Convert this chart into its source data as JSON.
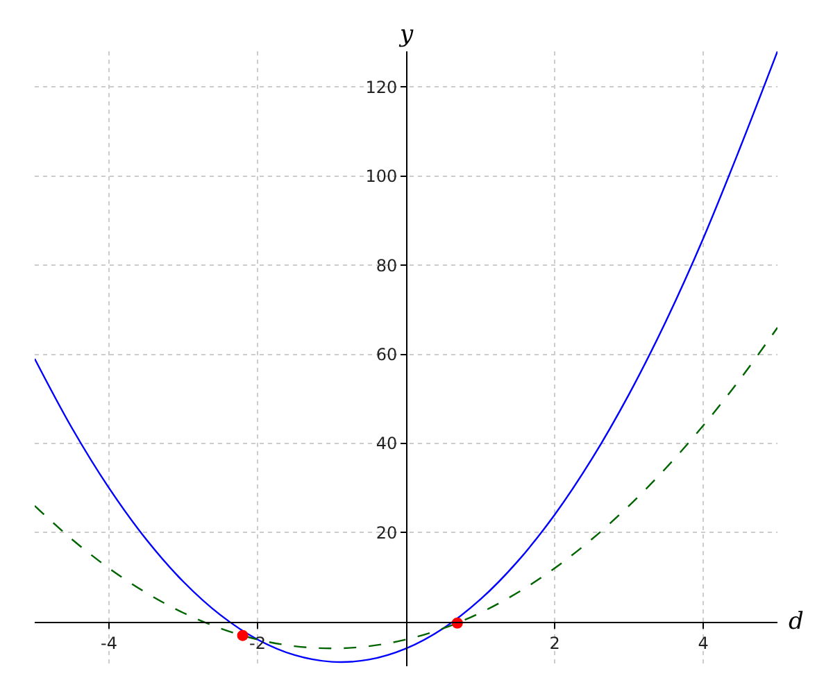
{
  "chart_data": {
    "type": "line",
    "xlabel": "d",
    "ylabel": "y",
    "xlim": [
      -5,
      5
    ],
    "ylim": [
      -10,
      128
    ],
    "xticks": [
      -4,
      -2,
      2,
      4
    ],
    "yticks": [
      20,
      40,
      60,
      80,
      100,
      120
    ],
    "grid": true,
    "series": [
      {
        "color": "#0000ff",
        "line_style": "solid",
        "x": [
          -5,
          -4.5,
          -4,
          -3.5,
          -3,
          -2.5,
          -2,
          -1.5,
          -1,
          -0.5,
          0,
          0.5,
          1,
          1.5,
          2,
          2.5,
          3,
          3.5,
          4,
          4.5,
          5
        ],
        "values": [
          59,
          43.5,
          30,
          18.5,
          9,
          1.5,
          -4,
          -7.5,
          -9,
          -8.5,
          -6,
          -1.5,
          5,
          13.5,
          24,
          36.5,
          51,
          67.5,
          86,
          106.5,
          128
        ]
      },
      {
        "color": "#006400",
        "line_style": "dashed",
        "x": [
          -5,
          -4.5,
          -4,
          -3.5,
          -3,
          -2.5,
          -2,
          -1.5,
          -1,
          -0.5,
          0,
          0.5,
          1,
          1.5,
          2,
          2.5,
          3,
          3.5,
          4,
          4.5,
          5
        ],
        "values": [
          26,
          18.5,
          12,
          6.5,
          2,
          -1.5,
          -4,
          -5.5,
          -6,
          -5.5,
          -4,
          -1.5,
          2,
          6.5,
          12,
          18.5,
          26,
          34.5,
          44,
          54.5,
          66
        ]
      },
      {
        "type": "scatter",
        "color": "#ff0000",
        "marker": "circle",
        "x": [
          -2.2,
          0.69
        ],
        "values": [
          -3.1,
          -0.3
        ]
      }
    ]
  }
}
